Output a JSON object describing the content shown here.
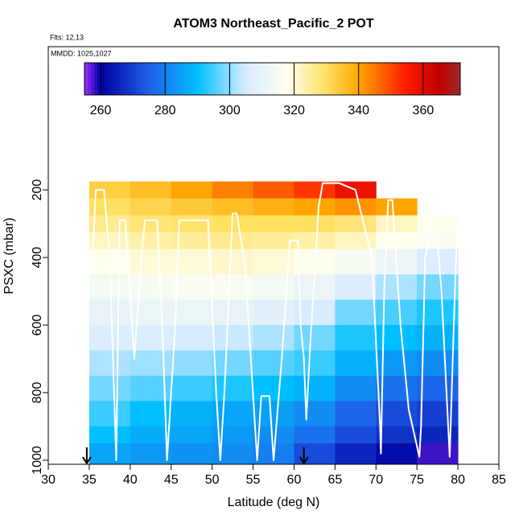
{
  "chart_data": {
    "type": "heatmap",
    "title": "ATOM3 Northeast_Pacific_2 POT",
    "subtitle": "Flts: 12,13",
    "annotation": "MMDD: 1025,1027",
    "x_label": "Latitude (deg N)",
    "y_label": "PSXC (mbar)",
    "xlim": [
      30,
      85
    ],
    "xticks": [
      30,
      35,
      40,
      45,
      50,
      55,
      60,
      65,
      70,
      75,
      80,
      85
    ],
    "ylim": [
      1012,
      -224
    ],
    "yticks": [
      200,
      400,
      600,
      800,
      1000
    ],
    "clim": [
      255,
      371.5
    ],
    "cticks": [
      260,
      280,
      300,
      320,
      340,
      360
    ],
    "colorscale": [
      [
        255,
        "#9b30ff"
      ],
      [
        260,
        "#0000a0"
      ],
      [
        275,
        "#1f5fe8"
      ],
      [
        290,
        "#00bfff"
      ],
      [
        305,
        "#d8ecff"
      ],
      [
        318,
        "#ffffee"
      ],
      [
        330,
        "#ffe060"
      ],
      [
        340,
        "#ffa500"
      ],
      [
        355,
        "#ff1a00"
      ],
      [
        365,
        "#c00000"
      ],
      [
        371.5,
        "#a02828"
      ]
    ],
    "lat_edges": [
      35,
      40,
      45,
      50,
      55,
      60,
      65,
      70,
      75,
      80
    ],
    "pressure_edges": [
      175,
      225,
      275,
      325,
      375,
      450,
      525,
      600,
      675,
      750,
      825,
      900,
      950,
      1010
    ],
    "z": [
      [
        333,
        336,
        340,
        344,
        348,
        352,
        358,
        null,
        null
      ],
      [
        330,
        332,
        334,
        336,
        338,
        340,
        342,
        340,
        null
      ],
      [
        326,
        328,
        329,
        330,
        330,
        330,
        328,
        322,
        318
      ],
      [
        322,
        324,
        325,
        326,
        325,
        324,
        322,
        318,
        316
      ],
      [
        318,
        320,
        320,
        321,
        320,
        318,
        315,
        312,
        306
      ],
      [
        314,
        315,
        316,
        316,
        314,
        312,
        306,
        302,
        298
      ],
      [
        310,
        311,
        311,
        310,
        308,
        305,
        298,
        295,
        292
      ],
      [
        306,
        306,
        305,
        304,
        302,
        298,
        292,
        290,
        288
      ],
      [
        302,
        301,
        300,
        298,
        296,
        294,
        288,
        284,
        282
      ],
      [
        298,
        296,
        294,
        292,
        290,
        288,
        282,
        278,
        276
      ],
      [
        294,
        290,
        288,
        286,
        285,
        282,
        276,
        272,
        270
      ],
      [
        290,
        287,
        286,
        284,
        282,
        278,
        272,
        268,
        266
      ],
      [
        286,
        284,
        283,
        282,
        280,
        272,
        266,
        262,
        258
      ]
    ],
    "track": {
      "color": "#ffffff",
      "x": [
        35.3,
        35.8,
        36.8,
        37.5,
        38.3,
        38.7,
        39.4,
        40.5,
        41.3,
        41.8,
        43.3,
        44,
        44.5,
        45.5,
        46,
        49.5,
        50.5,
        51,
        51.5,
        52.5,
        53,
        54,
        55.5,
        56,
        57,
        57.5,
        58.5,
        59.5,
        60.5,
        60.8,
        61.2,
        61.5,
        62,
        63,
        63.5,
        65.5,
        66.5,
        67.5,
        68.5,
        69.5,
        70.5,
        70.6,
        71,
        71.5,
        72,
        73,
        74,
        75.3,
        75.5,
        76,
        76.5,
        77.5,
        78,
        79,
        79.5,
        79.8,
        80
      ],
      "y": [
        450,
        200,
        200,
        400,
        1000,
        290,
        290,
        700,
        420,
        290,
        290,
        650,
        1000,
        600,
        290,
        290,
        800,
        1000,
        800,
        270,
        270,
        420,
        1000,
        810,
        810,
        1000,
        700,
        350,
        350,
        600,
        700,
        880,
        650,
        250,
        180,
        180,
        190,
        200,
        300,
        400,
        900,
        980,
        500,
        230,
        230,
        600,
        850,
        990,
        900,
        400,
        350,
        350,
        500,
        990,
        600,
        380,
        310
      ]
    },
    "arrow_lats": [
      34.7,
      61.2
    ]
  }
}
